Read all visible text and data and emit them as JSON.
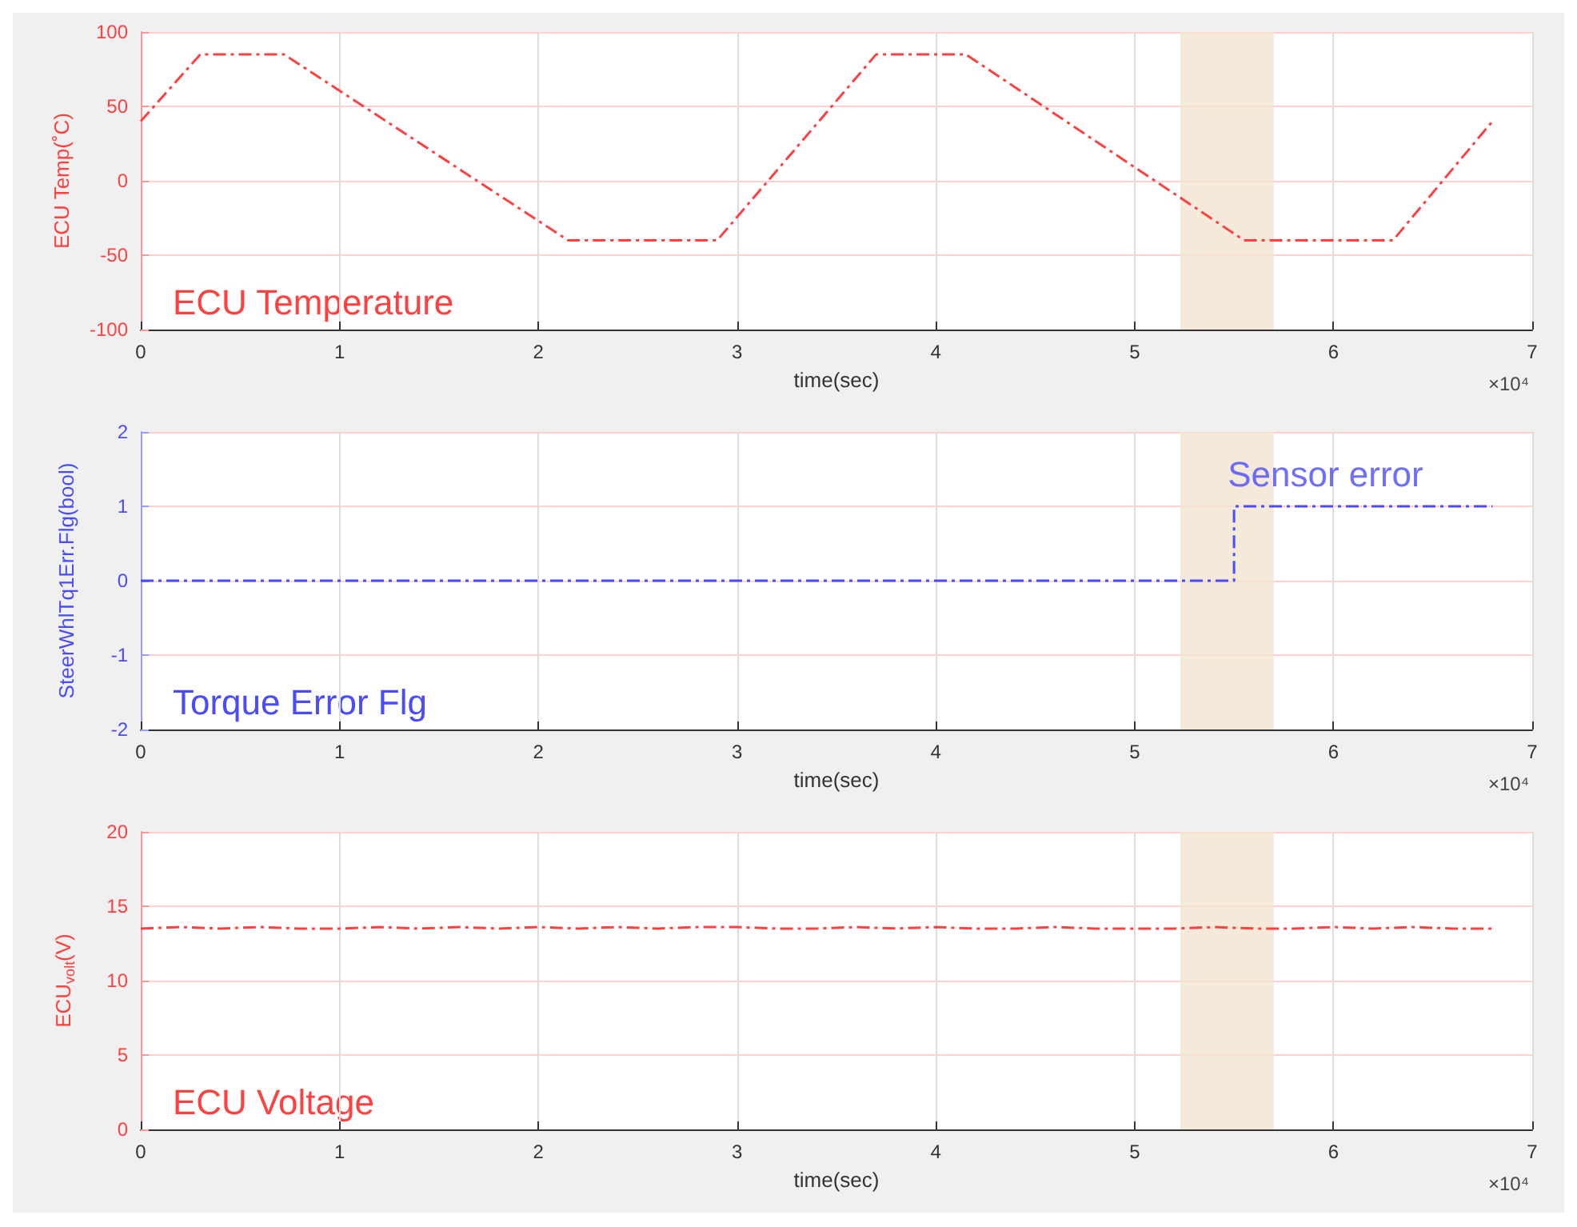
{
  "chart_data": [
    {
      "type": "line",
      "ylabel": "ECU Temp(˚C)",
      "xlabel": "time(sec)",
      "color": "#ff4040",
      "line_style": "dashed",
      "grid": true,
      "x": [
        0,
        0.3,
        0.72,
        2.15,
        2.9,
        3.7,
        4.15,
        5.55,
        6.3,
        6.8
      ],
      "values": [
        40,
        85,
        85,
        -40,
        -40,
        85,
        85,
        -40,
        -40,
        40
      ],
      "xlim": [
        0,
        7
      ],
      "xticks": [
        0,
        1,
        2,
        3,
        4,
        5,
        6,
        7
      ],
      "ylim": [
        -100,
        100
      ],
      "yticks": [
        -100,
        -50,
        0,
        50,
        100
      ],
      "bands": [
        {
          "axis": "x",
          "from": 5.23,
          "to": 5.7,
          "color": "#f3e3cf"
        }
      ],
      "annotations": [
        "ECU Temperature",
        "×10⁴"
      ]
    },
    {
      "type": "step",
      "ylabel": "SteerWhlTq1Err.Flg(bool)",
      "xlabel": "time(sec)",
      "color": "#4a4aff",
      "line_style": "dashed",
      "grid": true,
      "x": [
        0,
        5.5,
        6.8
      ],
      "values": [
        0,
        1,
        1
      ],
      "xlim": [
        0,
        7
      ],
      "xticks": [
        0,
        1,
        2,
        3,
        4,
        5,
        6,
        7
      ],
      "ylim": [
        -2,
        2
      ],
      "yticks": [
        -2,
        -1,
        0,
        1,
        2
      ],
      "bands": [
        {
          "axis": "x",
          "from": 5.23,
          "to": 5.7,
          "color": "#f3e3cf"
        }
      ],
      "annotations": [
        "Torque Error Flg",
        {
          "text": "Sensor error",
          "x": 5.5,
          "y": 1
        },
        "×10⁴"
      ]
    },
    {
      "type": "line",
      "ylabel": "ECU$_{volt}$(V)",
      "xlabel": "time(sec)",
      "color": "#ff4040",
      "line_style": "dashed",
      "grid": true,
      "x": [
        0,
        0.2,
        0.4,
        0.6,
        0.8,
        1,
        1.2,
        1.4,
        1.6,
        1.8,
        2,
        2.2,
        2.4,
        2.6,
        2.8,
        3,
        3.2,
        3.4,
        3.6,
        3.8,
        4,
        4.2,
        4.4,
        4.6,
        4.8,
        5,
        5.2,
        5.4,
        5.6,
        5.8,
        6,
        6.2,
        6.4,
        6.6,
        6.8
      ],
      "values": [
        13.5,
        13.6,
        13.5,
        13.6,
        13.5,
        13.5,
        13.6,
        13.5,
        13.6,
        13.5,
        13.6,
        13.5,
        13.6,
        13.5,
        13.6,
        13.6,
        13.5,
        13.5,
        13.6,
        13.5,
        13.6,
        13.5,
        13.5,
        13.6,
        13.5,
        13.5,
        13.5,
        13.6,
        13.5,
        13.5,
        13.6,
        13.5,
        13.6,
        13.5,
        13.5
      ],
      "xlim": [
        0,
        7
      ],
      "xticks": [
        0,
        1,
        2,
        3,
        4,
        5,
        6,
        7
      ],
      "ylim": [
        0,
        20
      ],
      "yticks": [
        0,
        5,
        10,
        15,
        20
      ],
      "bands": [
        {
          "axis": "x",
          "from": 5.23,
          "to": 5.7,
          "color": "#f3e3cf"
        }
      ],
      "annotations": [
        "ECU Voltage",
        "×10⁴"
      ]
    }
  ]
}
